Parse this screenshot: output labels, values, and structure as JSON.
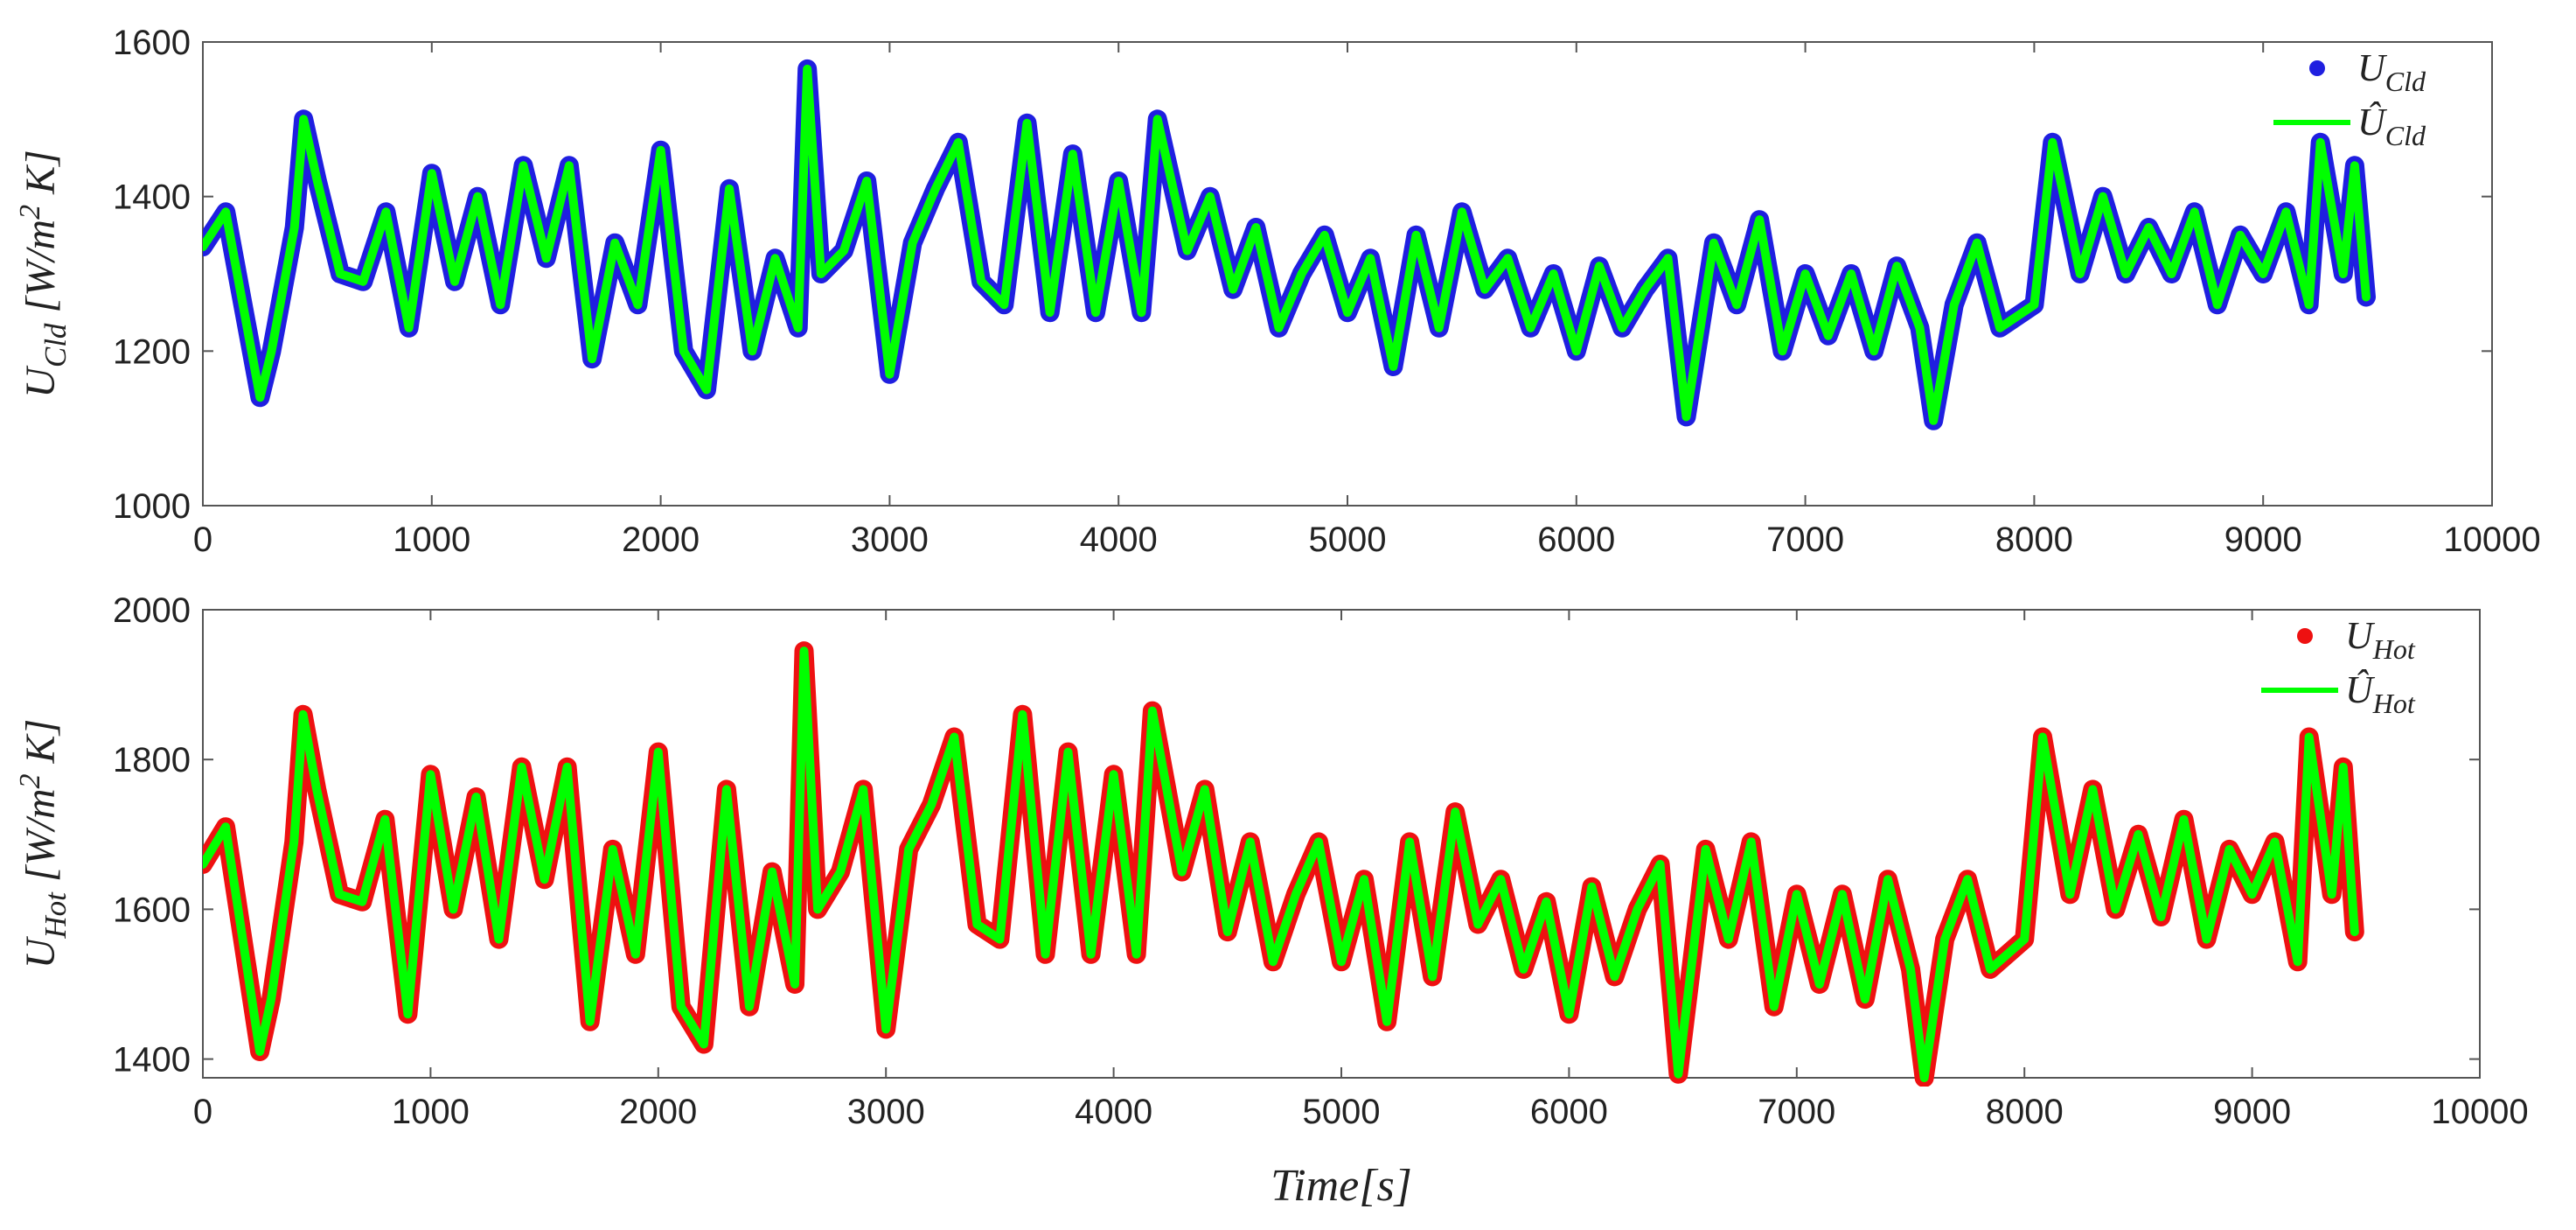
{
  "chart_data": [
    {
      "type": "line",
      "ylabel": "U_Cld [W/m^2 K]",
      "xlabel": "",
      "xlim": [
        0,
        10000
      ],
      "ylim": [
        1000,
        1600
      ],
      "xticks": [
        0,
        1000,
        2000,
        3000,
        4000,
        5000,
        6000,
        7000,
        8000,
        9000,
        10000
      ],
      "yticks": [
        1000,
        1200,
        1400,
        1600
      ],
      "grid": false,
      "legend_position": "top-right",
      "x": [
        0,
        100,
        250,
        300,
        400,
        440,
        500,
        600,
        700,
        800,
        900,
        1000,
        1100,
        1200,
        1300,
        1400,
        1500,
        1600,
        1700,
        1800,
        1900,
        2000,
        2100,
        2200,
        2300,
        2400,
        2500,
        2600,
        2640,
        2700,
        2800,
        2900,
        3000,
        3100,
        3200,
        3300,
        3400,
        3500,
        3600,
        3700,
        3800,
        3900,
        4000,
        4100,
        4170,
        4300,
        4400,
        4500,
        4600,
        4700,
        4800,
        4900,
        5000,
        5100,
        5200,
        5300,
        5400,
        5500,
        5600,
        5700,
        5800,
        5900,
        6000,
        6100,
        6200,
        6300,
        6400,
        6480,
        6600,
        6700,
        6800,
        6900,
        7000,
        7100,
        7200,
        7300,
        7400,
        7500,
        7560,
        7650,
        7750,
        7850,
        8000,
        8080,
        8200,
        8300,
        8400,
        8500,
        8600,
        8700,
        8800,
        8900,
        9000,
        9100,
        9200,
        9250,
        9350,
        9400,
        9450
      ],
      "series": [
        {
          "name": "U_Cld",
          "color": "#1f1fe0",
          "marker": "dot",
          "values": [
            1335,
            1380,
            1140,
            1200,
            1360,
            1500,
            1420,
            1300,
            1290,
            1380,
            1230,
            1430,
            1290,
            1400,
            1260,
            1440,
            1320,
            1440,
            1190,
            1340,
            1260,
            1460,
            1200,
            1150,
            1410,
            1200,
            1320,
            1230,
            1565,
            1300,
            1330,
            1420,
            1170,
            1340,
            1410,
            1470,
            1290,
            1260,
            1495,
            1250,
            1455,
            1250,
            1420,
            1250,
            1500,
            1330,
            1400,
            1280,
            1360,
            1230,
            1300,
            1350,
            1250,
            1320,
            1180,
            1350,
            1230,
            1380,
            1280,
            1320,
            1230,
            1300,
            1200,
            1310,
            1230,
            1280,
            1320,
            1115,
            1340,
            1260,
            1370,
            1200,
            1300,
            1220,
            1300,
            1200,
            1310,
            1230,
            1110,
            1260,
            1340,
            1230,
            1260,
            1470,
            1300,
            1400,
            1300,
            1360,
            1300,
            1380,
            1260,
            1350,
            1300,
            1380,
            1260,
            1470,
            1300,
            1440,
            1270
          ]
        },
        {
          "name": "Û_Cld",
          "color": "#00ff00",
          "marker": "line",
          "values": [
            1335,
            1380,
            1140,
            1200,
            1360,
            1500,
            1420,
            1300,
            1290,
            1380,
            1230,
            1430,
            1290,
            1400,
            1260,
            1440,
            1320,
            1440,
            1190,
            1340,
            1260,
            1460,
            1200,
            1150,
            1410,
            1200,
            1320,
            1230,
            1565,
            1300,
            1330,
            1420,
            1170,
            1340,
            1410,
            1470,
            1290,
            1260,
            1495,
            1250,
            1455,
            1250,
            1420,
            1250,
            1500,
            1330,
            1400,
            1280,
            1360,
            1230,
            1300,
            1350,
            1250,
            1320,
            1180,
            1350,
            1230,
            1380,
            1280,
            1320,
            1230,
            1300,
            1200,
            1310,
            1230,
            1280,
            1320,
            1115,
            1340,
            1260,
            1370,
            1200,
            1300,
            1220,
            1300,
            1200,
            1310,
            1230,
            1110,
            1260,
            1340,
            1230,
            1260,
            1470,
            1300,
            1400,
            1300,
            1360,
            1300,
            1380,
            1260,
            1350,
            1300,
            1380,
            1260,
            1470,
            1300,
            1440,
            1270
          ]
        }
      ]
    },
    {
      "type": "line",
      "ylabel": "U_Hot [W/m^2 K]",
      "xlabel": "Time[s]",
      "xlim": [
        0,
        10000
      ],
      "ylim": [
        1375,
        2000
      ],
      "xticks": [
        0,
        1000,
        2000,
        3000,
        4000,
        5000,
        6000,
        7000,
        8000,
        9000,
        10000
      ],
      "yticks": [
        1400,
        1600,
        1800,
        2000
      ],
      "grid": false,
      "legend_position": "top-right",
      "x": [
        0,
        100,
        250,
        300,
        400,
        440,
        500,
        600,
        700,
        800,
        900,
        1000,
        1100,
        1200,
        1300,
        1400,
        1500,
        1600,
        1700,
        1800,
        1900,
        2000,
        2100,
        2200,
        2300,
        2400,
        2500,
        2600,
        2640,
        2700,
        2800,
        2900,
        3000,
        3100,
        3200,
        3300,
        3400,
        3500,
        3600,
        3700,
        3800,
        3900,
        4000,
        4100,
        4170,
        4300,
        4400,
        4500,
        4600,
        4700,
        4800,
        4900,
        5000,
        5100,
        5200,
        5300,
        5400,
        5500,
        5600,
        5700,
        5800,
        5900,
        6000,
        6100,
        6200,
        6300,
        6400,
        6480,
        6600,
        6700,
        6800,
        6900,
        7000,
        7100,
        7200,
        7300,
        7400,
        7500,
        7560,
        7650,
        7750,
        7850,
        8000,
        8080,
        8200,
        8300,
        8400,
        8500,
        8600,
        8700,
        8800,
        8900,
        9000,
        9100,
        9200,
        9250,
        9350,
        9400,
        9450
      ],
      "series": [
        {
          "name": "U_Hot",
          "color": "#ee1111",
          "marker": "dot",
          "values": [
            1660,
            1710,
            1410,
            1480,
            1690,
            1860,
            1760,
            1620,
            1610,
            1720,
            1460,
            1780,
            1600,
            1750,
            1560,
            1790,
            1640,
            1790,
            1450,
            1680,
            1540,
            1810,
            1470,
            1420,
            1760,
            1470,
            1650,
            1500,
            1945,
            1600,
            1650,
            1760,
            1440,
            1680,
            1740,
            1830,
            1580,
            1560,
            1860,
            1540,
            1810,
            1540,
            1780,
            1540,
            1865,
            1650,
            1760,
            1570,
            1690,
            1530,
            1620,
            1690,
            1530,
            1640,
            1450,
            1690,
            1510,
            1730,
            1580,
            1640,
            1520,
            1610,
            1460,
            1630,
            1510,
            1600,
            1660,
            1380,
            1680,
            1560,
            1690,
            1470,
            1620,
            1500,
            1620,
            1480,
            1640,
            1520,
            1375,
            1560,
            1640,
            1520,
            1560,
            1830,
            1620,
            1760,
            1600,
            1700,
            1590,
            1720,
            1560,
            1680,
            1620,
            1690,
            1530,
            1830,
            1620,
            1790,
            1570
          ]
        },
        {
          "name": "Û_Hot",
          "color": "#00ff00",
          "marker": "line",
          "values": [
            1660,
            1710,
            1410,
            1480,
            1690,
            1860,
            1760,
            1620,
            1610,
            1720,
            1460,
            1780,
            1600,
            1750,
            1560,
            1790,
            1640,
            1790,
            1450,
            1680,
            1540,
            1810,
            1470,
            1420,
            1760,
            1470,
            1650,
            1500,
            1945,
            1600,
            1650,
            1760,
            1440,
            1680,
            1740,
            1830,
            1580,
            1560,
            1860,
            1540,
            1810,
            1540,
            1780,
            1540,
            1865,
            1650,
            1760,
            1570,
            1690,
            1530,
            1620,
            1690,
            1530,
            1640,
            1450,
            1690,
            1510,
            1730,
            1580,
            1640,
            1520,
            1610,
            1460,
            1630,
            1510,
            1600,
            1660,
            1380,
            1680,
            1560,
            1690,
            1470,
            1620,
            1500,
            1620,
            1480,
            1640,
            1520,
            1375,
            1560,
            1640,
            1520,
            1560,
            1830,
            1620,
            1760,
            1600,
            1700,
            1590,
            1720,
            1560,
            1680,
            1620,
            1690,
            1530,
            1830,
            1620,
            1790,
            1570
          ]
        }
      ]
    }
  ]
}
